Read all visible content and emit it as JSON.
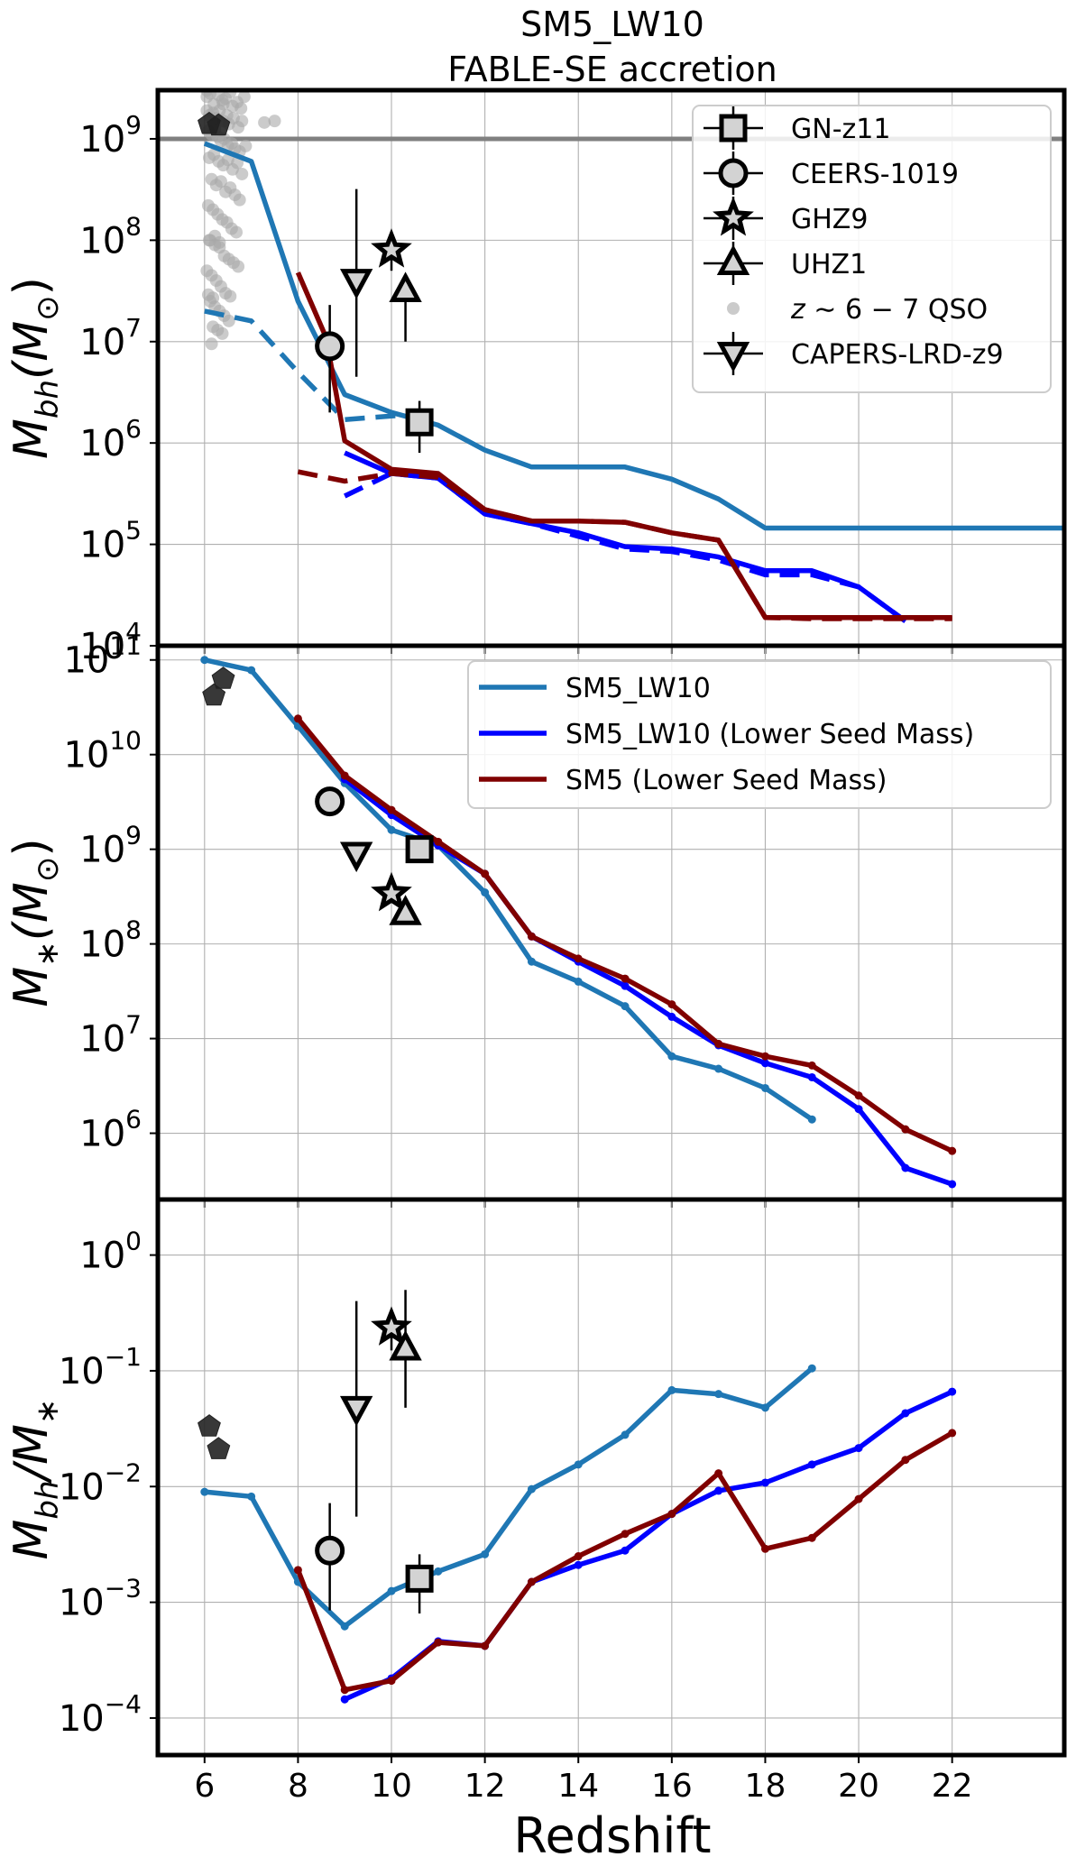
{
  "title": [
    "SM5_LW10",
    "FABLE-SE accretion"
  ],
  "xlabel": "Redshift",
  "x_ticks": [
    6,
    8,
    10,
    12,
    14,
    16,
    18,
    20,
    22
  ],
  "colors": {
    "sm5_lw10": "#1f77b4",
    "sm5_lw10_low": "#0000ff",
    "sm5_low": "#800000",
    "qso": "#a9a9a9",
    "marker_face": "#d3d3d3",
    "hline": "#808080"
  },
  "chart_data": [
    {
      "type": "line",
      "panel": "top",
      "ylabel_main": "M",
      "ylabel_sub": "bh",
      "ylabel_tail": "(M",
      "ylabel_sun": "⊙",
      "ylabel_close": ")",
      "yscale": "log",
      "xlim": [
        5,
        24.4
      ],
      "ylim_exp": [
        4,
        9.48
      ],
      "y_tick_exps": [
        4,
        5,
        6,
        7,
        8,
        9
      ],
      "hline_y": 1000000000.0,
      "series": [
        {
          "key": "sm5_lw10",
          "style": "solid",
          "x": [
            6,
            7,
            8,
            9,
            10,
            11,
            12,
            13,
            14,
            15,
            16,
            17,
            18,
            19,
            20,
            21,
            22,
            23,
            24.4
          ],
          "y": [
            900000000.0,
            600000000.0,
            25000000.0,
            3000000.0,
            2000000.0,
            1500000.0,
            850000.0,
            580000.0,
            580000.0,
            580000.0,
            440000.0,
            280000.0,
            145000.0,
            145000.0,
            145000.0,
            145000.0,
            145000.0,
            145000.0,
            145000.0
          ]
        },
        {
          "key": "sm5_lw10",
          "style": "dashed",
          "x": [
            6,
            7,
            8,
            9,
            10,
            10.6
          ],
          "y": [
            20000000.0,
            16000000.0,
            5000000.0,
            1700000.0,
            1850000.0,
            1900000.0
          ]
        },
        {
          "key": "sm5_lw10_low",
          "style": "solid",
          "x": [
            9,
            10,
            11,
            12,
            13,
            14,
            15,
            16,
            17,
            18,
            19,
            20,
            21
          ],
          "y": [
            800000.0,
            500000.0,
            450000.0,
            200000.0,
            160000.0,
            130000.0,
            95000.0,
            90000.0,
            75000.0,
            55000.0,
            55000.0,
            38000.0,
            17500.0
          ]
        },
        {
          "key": "sm5_lw10_low",
          "style": "dashed",
          "x": [
            9,
            10,
            11,
            12,
            13,
            14,
            15,
            16,
            17,
            18,
            19,
            20,
            21
          ],
          "y": [
            300000.0,
            500000.0,
            450000.0,
            200000.0,
            160000.0,
            120000.0,
            90000.0,
            85000.0,
            70000.0,
            50000.0,
            50000.0,
            38000.0,
            17500.0
          ]
        },
        {
          "key": "sm5_low",
          "style": "solid",
          "x": [
            8,
            8.6,
            9,
            10,
            11,
            12,
            13,
            14,
            15,
            16,
            17,
            18,
            19,
            20,
            21,
            22
          ],
          "y": [
            48000000.0,
            11000000.0,
            1050000.0,
            550000.0,
            500000.0,
            220000.0,
            170000.0,
            170000.0,
            165000.0,
            130000.0,
            110000.0,
            19000.0,
            19000.0,
            19000.0,
            19000.0,
            19000.0
          ]
        },
        {
          "key": "sm5_low",
          "style": "dashed",
          "x": [
            8,
            9,
            10,
            11,
            12,
            13,
            14,
            15,
            16,
            17,
            18,
            19,
            20,
            21,
            22
          ],
          "y": [
            520000.0,
            420000.0,
            500000.0,
            460000.0,
            220000.0,
            170000.0,
            170000.0,
            165000.0,
            130000.0,
            110000.0,
            19000.0,
            18500.0,
            18500.0,
            18500.0,
            18500.0
          ]
        }
      ],
      "points": [
        {
          "marker": "square",
          "x": 10.6,
          "y": 1600000.0,
          "ylo": 800000.0,
          "yhi": 2600000.0
        },
        {
          "marker": "circle",
          "x": 8.68,
          "y": 9000000.0,
          "ylo": 2000000.0,
          "yhi": 23000000.0
        },
        {
          "marker": "star",
          "x": 10.0,
          "y": 80000000.0,
          "ylo": 50000000.0,
          "yhi": 90000000.0
        },
        {
          "marker": "triangle_up",
          "x": 10.3,
          "y": 32000000.0,
          "ylo": 10000000.0,
          "yhi": 32000000.0
        },
        {
          "marker": "triangle_down",
          "x": 9.25,
          "y": 40000000.0,
          "ylo": 4500000.0,
          "yhi": 320000000.0
        },
        {
          "marker": "pentagon",
          "x": 6.1,
          "y": 1400000000.0
        },
        {
          "marker": "pentagon",
          "x": 6.3,
          "y": 1350000000.0
        }
      ],
      "qso_points": {
        "x": [
          6.05,
          6.12,
          6.2,
          6.3,
          6.38,
          6.45,
          6.55,
          6.6,
          6.7,
          6.78,
          6.85,
          6.05,
          6.1,
          6.18,
          6.25,
          6.32,
          6.4,
          6.48,
          6.52,
          6.62,
          6.72,
          6.8,
          6.08,
          6.15,
          6.22,
          6.28,
          6.35,
          6.42,
          6.5,
          6.58,
          6.65,
          6.75,
          6.88,
          6.1,
          6.2,
          6.3,
          6.4,
          6.5,
          6.6,
          6.7,
          6.8,
          6.15,
          6.25,
          6.35,
          6.45,
          6.55,
          6.65,
          6.75,
          6.08,
          6.18,
          6.28,
          6.38,
          6.48,
          6.58,
          6.68,
          6.1,
          6.22,
          6.32,
          6.42,
          6.52,
          6.62,
          6.72,
          6.05,
          6.15,
          6.25,
          6.35,
          6.45,
          6.55,
          6.12,
          6.22,
          6.32,
          6.42,
          6.52,
          6.18,
          6.28,
          6.38,
          6.12,
          6.22,
          6.32,
          6.08,
          6.18,
          6.15,
          7.28,
          7.5,
          6.4,
          6.05
        ],
        "y": [
          2600000000.0,
          2800000000.0,
          2200000000.0,
          2700000000.0,
          2400000000.0,
          2500000000.0,
          2900000000.0,
          2100000000.0,
          2300000000.0,
          2000000000.0,
          2600000000.0,
          1900000000.0,
          1700000000.0,
          1800000000.0,
          1600000000.0,
          1900000000.0,
          1500000000.0,
          1700000000.0,
          1400000000.0,
          1600000000.0,
          1300000000.0,
          1500000000.0,
          1200000000.0,
          1100000000.0,
          1250000000.0,
          1050000000.0,
          950000000.0,
          1000000000.0,
          850000000.0,
          900000000.0,
          800000000.0,
          750000000.0,
          850000000.0,
          650000000.0,
          700000000.0,
          600000000.0,
          550000000.0,
          620000000.0,
          500000000.0,
          580000000.0,
          450000000.0,
          400000000.0,
          350000000.0,
          380000000.0,
          300000000.0,
          330000000.0,
          280000000.0,
          250000000.0,
          220000000.0,
          200000000.0,
          180000000.0,
          160000000.0,
          150000000.0,
          130000000.0,
          120000000.0,
          100000000.0,
          90000000.0,
          85000000.0,
          70000000.0,
          65000000.0,
          60000000.0,
          55000000.0,
          50000000.0,
          45000000.0,
          40000000.0,
          35000000.0,
          30000000.0,
          28000000.0,
          25000000.0,
          22000000.0,
          20000000.0,
          18000000.0,
          16000000.0,
          14000000.0,
          13000000.0,
          12000000.0,
          100000000.0,
          110000000.0,
          95000000.0,
          29000000.0,
          27000000.0,
          9500000.0,
          1450000000.0,
          1500000000.0,
          2200000000.0,
          3000000000.0
        ]
      },
      "legend": {
        "placement": "upper-right",
        "entries": [
          {
            "marker": "square",
            "label": "GN-z11"
          },
          {
            "marker": "circle",
            "label": "CEERS-1019"
          },
          {
            "marker": "star",
            "label": "GHZ9"
          },
          {
            "marker": "triangle_up",
            "label": "UHZ1"
          },
          {
            "marker": "qso",
            "label_parts": [
              "z",
              " ∼ 6 − 7 QSO"
            ]
          },
          {
            "marker": "triangle_down",
            "label": "CAPERS-LRD-z9"
          }
        ]
      }
    },
    {
      "type": "line",
      "panel": "middle",
      "ylabel_main": "M",
      "ylabel_sub": "∗",
      "ylabel_tail": "(M",
      "ylabel_sun": "⊙",
      "ylabel_close": ")",
      "yscale": "log",
      "xlim": [
        5,
        24.4
      ],
      "ylim_exp": [
        5.3,
        11.15
      ],
      "y_tick_exps": [
        6,
        7,
        8,
        9,
        10,
        11
      ],
      "series": [
        {
          "key": "sm5_lw10",
          "style": "solid",
          "dots": true,
          "x": [
            6,
            7,
            8,
            9,
            10,
            11,
            12,
            13,
            14,
            15,
            16,
            17,
            18,
            19
          ],
          "y": [
            100000000000.0,
            78000000000.0,
            20000000000.0,
            5000000000.0,
            1600000000.0,
            1100000000.0,
            350000000.0,
            65000000.0,
            40000000.0,
            22000000.0,
            6500000.0,
            4800000.0,
            3000000.0,
            1400000.0
          ]
        },
        {
          "key": "sm5_lw10_low",
          "style": "solid",
          "dots": true,
          "x": [
            9,
            10,
            11,
            12,
            13,
            14,
            15,
            16,
            17,
            18,
            19,
            20,
            21,
            22
          ],
          "y": [
            5500000000.0,
            2300000000.0,
            1100000000.0,
            550000000.0,
            120000000.0,
            65000000.0,
            36000000.0,
            17000000.0,
            8500000.0,
            5500000.0,
            3900000.0,
            1800000.0,
            430000.0,
            290000.0
          ]
        },
        {
          "key": "sm5_low",
          "style": "solid",
          "dots": true,
          "x": [
            8,
            9,
            10,
            11,
            12,
            13,
            14,
            15,
            16,
            17,
            18,
            19,
            20,
            21,
            22
          ],
          "y": [
            24000000000.0,
            6000000000.0,
            2600000000.0,
            1200000000.0,
            550000000.0,
            120000000.0,
            70000000.0,
            43000000.0,
            23000000.0,
            8800000.0,
            6500000.0,
            5200000.0,
            2500000.0,
            1100000.0,
            650000.0
          ]
        }
      ],
      "points": [
        {
          "marker": "square",
          "x": 10.6,
          "y": 1000000000.0
        },
        {
          "marker": "circle",
          "x": 8.68,
          "y": 3200000000.0
        },
        {
          "marker": "star",
          "x": 10.0,
          "y": 340000000.0
        },
        {
          "marker": "triangle_up",
          "x": 10.3,
          "y": 210000000.0
        },
        {
          "marker": "triangle_down",
          "x": 9.25,
          "y": 900000000.0
        },
        {
          "marker": "pentagon",
          "x": 6.2,
          "y": 42000000000.0
        },
        {
          "marker": "pentagon",
          "x": 6.4,
          "y": 63000000000.0
        }
      ],
      "legend": {
        "placement": "upper-right",
        "entries": [
          {
            "key": "sm5_lw10",
            "label": "SM5_LW10"
          },
          {
            "key": "sm5_lw10_low",
            "label": "SM5_LW10 (Lower Seed Mass)"
          },
          {
            "key": "sm5_low",
            "label": "SM5 (Lower Seed Mass)"
          }
        ]
      }
    },
    {
      "type": "line",
      "panel": "bottom",
      "ylabel_main": "M",
      "ylabel_sub": "bh",
      "ylabel_tail": "/M",
      "ylabel_sub2": "∗",
      "yscale": "log",
      "xlim": [
        5,
        24.4
      ],
      "ylim_exp": [
        -4.32,
        0.48
      ],
      "y_tick_exps": [
        -4,
        -3,
        -2,
        -1,
        0
      ],
      "series": [
        {
          "key": "sm5_lw10",
          "style": "solid",
          "dots": true,
          "x": [
            6,
            7,
            8,
            9,
            10,
            11,
            12,
            13,
            14,
            15,
            16,
            17,
            18,
            19
          ],
          "y": [
            0.009,
            0.0082,
            0.0015,
            0.00062,
            0.00125,
            0.00185,
            0.0026,
            0.0095,
            0.0155,
            0.028,
            0.068,
            0.063,
            0.048,
            0.105
          ]
        },
        {
          "key": "sm5_lw10_low",
          "style": "solid",
          "dots": true,
          "x": [
            9,
            10,
            11,
            12,
            13,
            14,
            15,
            16,
            17,
            18,
            19,
            20,
            21,
            22
          ],
          "y": [
            0.000145,
            0.00022,
            0.00046,
            0.00042,
            0.0015,
            0.0021,
            0.0028,
            0.0058,
            0.0092,
            0.0108,
            0.0155,
            0.0215,
            0.043,
            0.066
          ]
        },
        {
          "key": "sm5_low",
          "style": "solid",
          "dots": true,
          "x": [
            8,
            9,
            10,
            11,
            12,
            13,
            14,
            15,
            16,
            17,
            18,
            19,
            20,
            21,
            22
          ],
          "y": [
            0.0019,
            0.000175,
            0.00021,
            0.00045,
            0.00042,
            0.0015,
            0.0025,
            0.0039,
            0.0058,
            0.013,
            0.0029,
            0.0036,
            0.0078,
            0.017,
            0.029
          ]
        }
      ],
      "points": [
        {
          "marker": "square",
          "x": 10.6,
          "y": 0.0016,
          "ylo": 0.0008,
          "yhi": 0.0026
        },
        {
          "marker": "circle",
          "x": 8.68,
          "y": 0.0028,
          "ylo": 0.00085,
          "yhi": 0.0072
        },
        {
          "marker": "star",
          "x": 10.0,
          "y": 0.235,
          "ylo": 0.15,
          "yhi": 0.27
        },
        {
          "marker": "triangle_up",
          "x": 10.3,
          "y": 0.155,
          "ylo": 0.048,
          "yhi": 0.5
        },
        {
          "marker": "triangle_down",
          "x": 9.25,
          "y": 0.048,
          "ylo": 0.0055,
          "yhi": 0.4
        },
        {
          "marker": "pentagon",
          "x": 6.1,
          "y": 0.033
        },
        {
          "marker": "pentagon",
          "x": 6.3,
          "y": 0.021
        }
      ]
    }
  ]
}
